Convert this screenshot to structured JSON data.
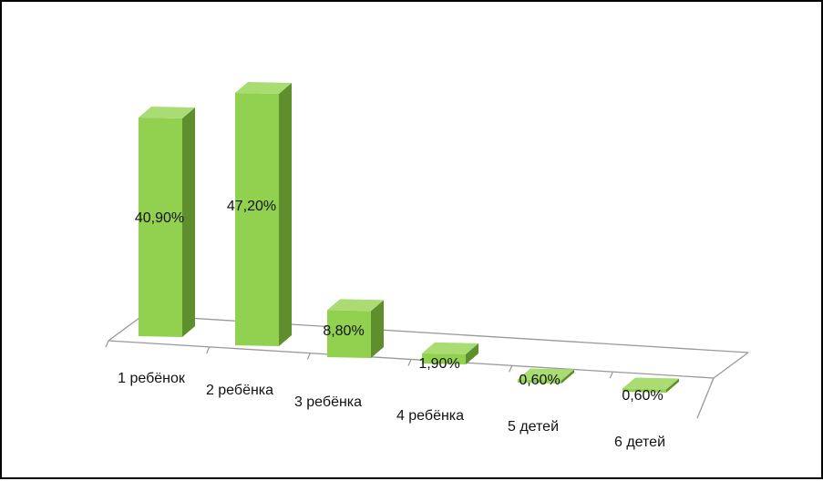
{
  "chart_data": {
    "type": "bar",
    "style": "3d-perspective-columns",
    "categories": [
      "1 ребёнок",
      "2 ребёнка",
      "3 ребёнка",
      "4 ребёнка",
      "5 детей",
      "6 детей"
    ],
    "values": [
      40.9,
      47.2,
      8.8,
      1.9,
      0.6,
      0.6
    ],
    "data_labels": [
      "40,90%",
      "47,20%",
      "8,80%",
      "1,90%",
      "0,60%",
      "0,60%"
    ],
    "ylim": [
      0,
      50
    ],
    "grid": false,
    "legend": "none"
  },
  "colors": {
    "bar_front": "#92d050",
    "bar_side": "#5f8f2c",
    "bar_top": "#a9dc72",
    "floor_line": "#999999"
  }
}
